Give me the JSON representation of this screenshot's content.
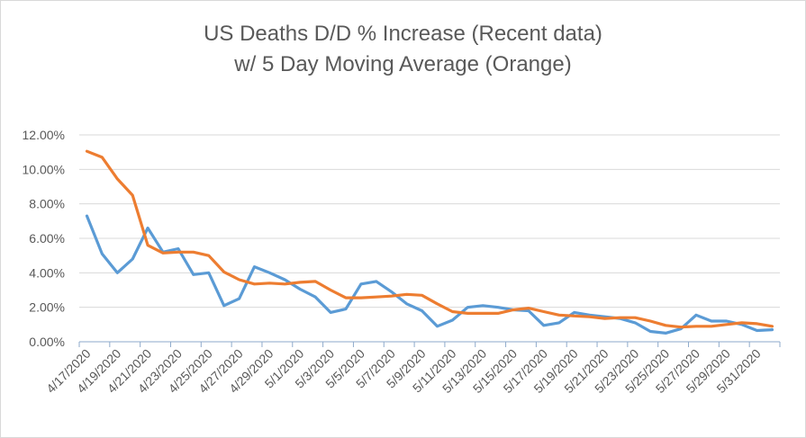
{
  "chart_data": {
    "type": "line",
    "title_line1": "US Deaths D/D % Increase (Recent data)",
    "title_line2": "w/ 5 Day Moving Average (Orange)",
    "xlabel": "",
    "ylabel": "",
    "ylim": [
      0,
      12
    ],
    "y_ticks": [
      "0.00%",
      "2.00%",
      "4.00%",
      "6.00%",
      "8.00%",
      "10.00%",
      "12.00%"
    ],
    "grid": true,
    "legend": "none",
    "x": [
      "4/17/2020",
      "4/18/2020",
      "4/19/2020",
      "4/20/2020",
      "4/21/2020",
      "4/22/2020",
      "4/23/2020",
      "4/24/2020",
      "4/25/2020",
      "4/26/2020",
      "4/27/2020",
      "4/28/2020",
      "4/29/2020",
      "4/30/2020",
      "5/1/2020",
      "5/2/2020",
      "5/3/2020",
      "5/4/2020",
      "5/5/2020",
      "5/6/2020",
      "5/7/2020",
      "5/8/2020",
      "5/9/2020",
      "5/10/2020",
      "5/11/2020",
      "5/12/2020",
      "5/13/2020",
      "5/14/2020",
      "5/15/2020",
      "5/16/2020",
      "5/17/2020",
      "5/18/2020",
      "5/19/2020",
      "5/20/2020",
      "5/21/2020",
      "5/22/2020",
      "5/23/2020",
      "5/24/2020",
      "5/25/2020",
      "5/26/2020",
      "5/27/2020",
      "5/28/2020",
      "5/29/2020",
      "5/30/2020",
      "5/31/2020",
      "6/1/2020"
    ],
    "x_tick_labels": [
      "4/17/2020",
      "4/19/2020",
      "4/21/2020",
      "4/23/2020",
      "4/25/2020",
      "4/27/2020",
      "4/29/2020",
      "5/1/2020",
      "5/3/2020",
      "5/5/2020",
      "5/7/2020",
      "5/9/2020",
      "5/11/2020",
      "5/13/2020",
      "5/15/2020",
      "5/17/2020",
      "5/19/2020",
      "5/21/2020",
      "5/23/2020",
      "5/25/2020",
      "5/27/2020",
      "5/29/2020",
      "5/31/2020"
    ],
    "series": [
      {
        "color": "#5b9bd5",
        "values": [
          7.3,
          5.1,
          4.0,
          4.8,
          6.6,
          5.2,
          5.4,
          3.9,
          4.0,
          2.1,
          2.5,
          4.35,
          4.0,
          3.6,
          3.05,
          2.6,
          1.7,
          1.9,
          3.35,
          3.5,
          2.9,
          2.2,
          1.8,
          0.9,
          1.25,
          2.0,
          2.1,
          2.0,
          1.85,
          1.8,
          0.95,
          1.1,
          1.7,
          1.55,
          1.45,
          1.35,
          1.1,
          0.6,
          0.5,
          0.75,
          1.55,
          1.2,
          1.2,
          1.0,
          0.65,
          0.7
        ]
      },
      {
        "color": "#ed7d31",
        "values": [
          11.05,
          10.7,
          9.45,
          8.5,
          5.6,
          5.15,
          5.2,
          5.2,
          5.0,
          4.05,
          3.6,
          3.35,
          3.4,
          3.35,
          3.45,
          3.5,
          3.0,
          2.55,
          2.55,
          2.6,
          2.65,
          2.75,
          2.7,
          2.2,
          1.75,
          1.65,
          1.65,
          1.65,
          1.85,
          1.95,
          1.75,
          1.55,
          1.5,
          1.45,
          1.35,
          1.4,
          1.4,
          1.2,
          0.95,
          0.85,
          0.9,
          0.9,
          1.0,
          1.1,
          1.05,
          0.9
        ]
      }
    ]
  }
}
